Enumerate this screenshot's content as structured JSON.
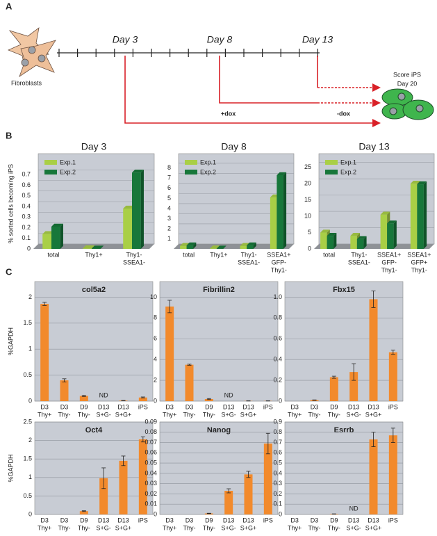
{
  "panel_labels": [
    "A",
    "B",
    "C"
  ],
  "diagram": {
    "cells_label": "Fibroblasts",
    "timeline_labels": [
      "Day 3",
      "Day 8",
      "Day 13"
    ],
    "treatments": [
      "+dox",
      "-dox"
    ],
    "score_label": [
      "Score iPS",
      "Day 20"
    ]
  },
  "chart_data": [
    {
      "type": "bar",
      "title": "Day 3",
      "ylabel": "% sorted cells becoming iPS",
      "categories": [
        [
          "total"
        ],
        [
          "Thy1+"
        ],
        [
          "Thy1-",
          "SSEA1-"
        ]
      ],
      "series": [
        {
          "name": "Exp.1",
          "color": "#a9cf46",
          "values": [
            0.14,
            0.005,
            0.38
          ]
        },
        {
          "name": "Exp.2",
          "color": "#17773a",
          "values": [
            0.21,
            0.003,
            0.72
          ]
        }
      ],
      "ylim": [
        0,
        0.8
      ],
      "yticks": [
        0,
        0.1,
        0.2,
        0.3,
        0.4,
        0.5,
        0.6,
        0.7
      ]
    },
    {
      "type": "bar",
      "title": "Day 8",
      "categories": [
        [
          "total"
        ],
        [
          "Thy1+"
        ],
        [
          "Thy1-",
          "SSEA1-"
        ],
        [
          "SSEA1+",
          "GFP-",
          "Thy1-"
        ]
      ],
      "series": [
        {
          "name": "Exp.1",
          "color": "#a9cf46",
          "values": [
            0.3,
            0.05,
            0.3,
            5.1
          ]
        },
        {
          "name": "Exp.2",
          "color": "#17773a",
          "values": [
            0.35,
            0.03,
            0.35,
            7.3
          ]
        }
      ],
      "ylim": [
        0,
        8.4
      ],
      "yticks": [
        1,
        2,
        3,
        4,
        5,
        6,
        7,
        8
      ]
    },
    {
      "type": "bar",
      "title": "Day 13",
      "categories": [
        [
          "total"
        ],
        [
          "Thy1-",
          "SSEA1-"
        ],
        [
          "SSEA1+",
          "GFP-",
          "Thy1-"
        ],
        [
          "SSEA1+",
          "GFP+",
          "Thy1-"
        ]
      ],
      "series": [
        {
          "name": "Exp.1",
          "color": "#a9cf46",
          "values": [
            5,
            4,
            10.5,
            20
          ]
        },
        {
          "name": "Exp.2",
          "color": "#17773a",
          "values": [
            4,
            3,
            7.8,
            19.8
          ]
        }
      ],
      "ylim": [
        0,
        26
      ],
      "yticks": [
        0,
        5,
        10,
        15,
        20,
        25
      ]
    },
    {
      "type": "bar",
      "title": "col5a2",
      "ylabel": "%GAPDH",
      "color": "#f28a2c",
      "categories": [
        [
          "D3",
          "Thy+"
        ],
        [
          "D3",
          "Thy-"
        ],
        [
          "D9",
          "Thy-"
        ],
        [
          "D13",
          "S+G-"
        ],
        [
          "D13",
          "S+G+"
        ],
        [
          "iPS"
        ]
      ],
      "values": [
        1.87,
        0.4,
        0.1,
        null,
        0.01,
        0.07
      ],
      "errors": [
        0.03,
        0.03,
        0.01,
        null,
        0.003,
        0.01
      ],
      "value_labels": [
        null,
        null,
        null,
        "ND",
        null,
        null
      ],
      "ylim": [
        0,
        2.3
      ],
      "yticks": [
        0,
        0.5,
        1,
        1.5,
        2
      ]
    },
    {
      "type": "bar",
      "title": "Fibrillin2",
      "color": "#f28a2c",
      "categories": [
        [
          "D3",
          "Thy+"
        ],
        [
          "D3",
          "Thy-"
        ],
        [
          "D9",
          "Thy-"
        ],
        [
          "D13",
          "S+G-"
        ],
        [
          "D13",
          "S+G+"
        ],
        [
          "iPS"
        ]
      ],
      "values": [
        9.1,
        3.5,
        0.2,
        null,
        0.02,
        0.02
      ],
      "errors": [
        0.6,
        0.05,
        0.05,
        null,
        0.01,
        0.01
      ],
      "value_labels": [
        null,
        null,
        null,
        "ND",
        null,
        null
      ],
      "ylim": [
        0,
        11.5
      ],
      "yticks": [
        0,
        2,
        4,
        6,
        8,
        10
      ]
    },
    {
      "type": "bar",
      "title": "Fbx15",
      "color": "#f28a2c",
      "categories": [
        [
          "D3",
          "Thy+"
        ],
        [
          "D3",
          "Thy-"
        ],
        [
          "D9",
          "Thy-"
        ],
        [
          "D13",
          "S+G-"
        ],
        [
          "D13",
          "S+G+"
        ],
        [
          "iPS"
        ]
      ],
      "values": [
        0,
        0.01,
        0.23,
        0.28,
        0.98,
        0.47
      ],
      "errors": [
        0,
        0.002,
        0.01,
        0.08,
        0.08,
        0.02
      ],
      "ylim": [
        0,
        1.15
      ],
      "yticks": [
        0,
        0.2,
        0.4,
        0.6,
        0.8,
        {
          "value": 1,
          "label": "1.0"
        }
      ]
    },
    {
      "type": "bar",
      "title": "Oct4",
      "ylabel": "%GAPDH",
      "color": "#f28a2c",
      "categories": [
        [
          "D3",
          "Thy+"
        ],
        [
          "D3",
          "Thy-"
        ],
        [
          "D9",
          "Thy-"
        ],
        [
          "D13",
          "S+G-"
        ],
        [
          "D13",
          "S+G+"
        ],
        [
          "iPS"
        ]
      ],
      "values": [
        0,
        0,
        0.09,
        0.98,
        1.45,
        2.03
      ],
      "errors": [
        0,
        0,
        0.01,
        0.28,
        0.13,
        0.07
      ],
      "ylim": [
        0,
        2.5
      ],
      "yticks": [
        0,
        0.5,
        1,
        1.5,
        2,
        2.5
      ]
    },
    {
      "type": "bar",
      "title": "Nanog",
      "color": "#f28a2c",
      "categories": [
        [
          "D3",
          "Thy+"
        ],
        [
          "D3",
          "Thy-"
        ],
        [
          "D9",
          "Thy-"
        ],
        [
          "D13",
          "S+G-"
        ],
        [
          "D13",
          "S+G+"
        ],
        [
          "iPS"
        ]
      ],
      "values": [
        0,
        0,
        0.001,
        0.023,
        0.039,
        0.069
      ],
      "errors": [
        0,
        0,
        0.0002,
        0.002,
        0.003,
        0.01
      ],
      "ylim": [
        0,
        0.09
      ],
      "yticks": [
        0,
        0.01,
        0.02,
        0.03,
        0.04,
        0.05,
        0.06,
        0.07,
        0.08,
        0.09
      ]
    },
    {
      "type": "bar",
      "title": "Esrrb",
      "color": "#f28a2c",
      "categories": [
        [
          "D3",
          "Thy+"
        ],
        [
          "D3",
          "Thy-"
        ],
        [
          "D9",
          "Thy-"
        ],
        [
          "D13",
          "S+G-"
        ],
        [
          "D13",
          "S+G+"
        ],
        [
          "iPS"
        ]
      ],
      "values": [
        0,
        0,
        0.005,
        null,
        0.73,
        0.77
      ],
      "errors": [
        0,
        0,
        0.001,
        null,
        0.07,
        0.07
      ],
      "value_labels": [
        null,
        null,
        null,
        "ND",
        null,
        null
      ],
      "ylim": [
        0,
        0.9
      ],
      "yticks": [
        0,
        0.1,
        0.2,
        0.3,
        0.4,
        0.5,
        0.6,
        0.7,
        0.8,
        0.9
      ]
    }
  ]
}
